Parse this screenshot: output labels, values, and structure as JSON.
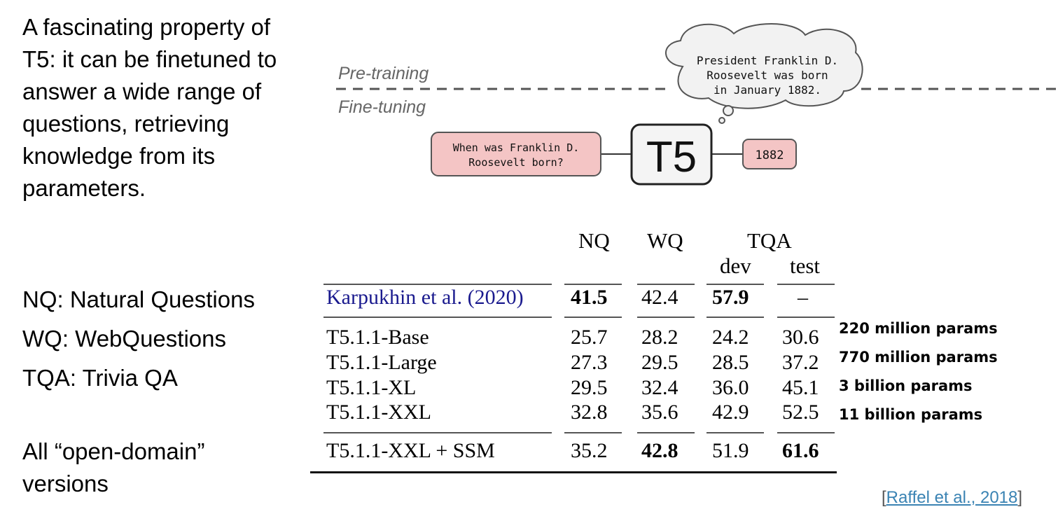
{
  "intro_text": "A fascinating property of T5: it can be finetuned to answer a wide range of questions, retrieving knowledge from its parameters.",
  "abbreviations": [
    "NQ: Natural Questions",
    "WQ: WebQuestions",
    "TQA: Trivia QA"
  ],
  "versions_note": "All “open-domain” versions",
  "diagram": {
    "pretraining_label": "Pre-training",
    "finetuning_label": "Fine-tuning",
    "cloud_lines": [
      "President Franklin D.",
      "Roosevelt was born",
      "in January 1882."
    ],
    "question_lines": [
      "When was Franklin D.",
      "Roosevelt born?"
    ],
    "model_label": "T5",
    "answer": "1882",
    "box_fill": "#f4c5c5",
    "box_stroke": "#555555"
  },
  "table": {
    "headers": {
      "nq": "NQ",
      "wq": "WQ",
      "tqa": "TQA",
      "dev": "dev",
      "test": "test"
    },
    "rows": [
      {
        "model": "Karpukhin et al. (2020)",
        "nq": "41.5",
        "wq": "42.4",
        "dev": "57.9",
        "test": "–"
      },
      {
        "model": "T5.1.1-Base",
        "nq": "25.7",
        "wq": "28.2",
        "dev": "24.2",
        "test": "30.6",
        "params": "220 million params"
      },
      {
        "model": "T5.1.1-Large",
        "nq": "27.3",
        "wq": "29.5",
        "dev": "28.5",
        "test": "37.2",
        "params": "770 million params"
      },
      {
        "model": "T5.1.1-XL",
        "nq": "29.5",
        "wq": "32.4",
        "dev": "36.0",
        "test": "45.1",
        "params": "3 billion params"
      },
      {
        "model": "T5.1.1-XXL",
        "nq": "32.8",
        "wq": "35.6",
        "dev": "42.9",
        "test": "52.5",
        "params": "11 billion params"
      },
      {
        "model": "T5.1.1-XXL + SSM",
        "nq": "35.2",
        "wq": "42.8",
        "dev": "51.9",
        "test": "61.6"
      }
    ],
    "bold_cells": [
      "0.nq",
      "0.dev",
      "5.wq",
      "5.test"
    ],
    "reference_color": "#1a1a8e"
  },
  "citation": {
    "open": "[",
    "link_text": "Raffel et al., 2018",
    "close": "]",
    "link_color": "#3a83b3"
  }
}
